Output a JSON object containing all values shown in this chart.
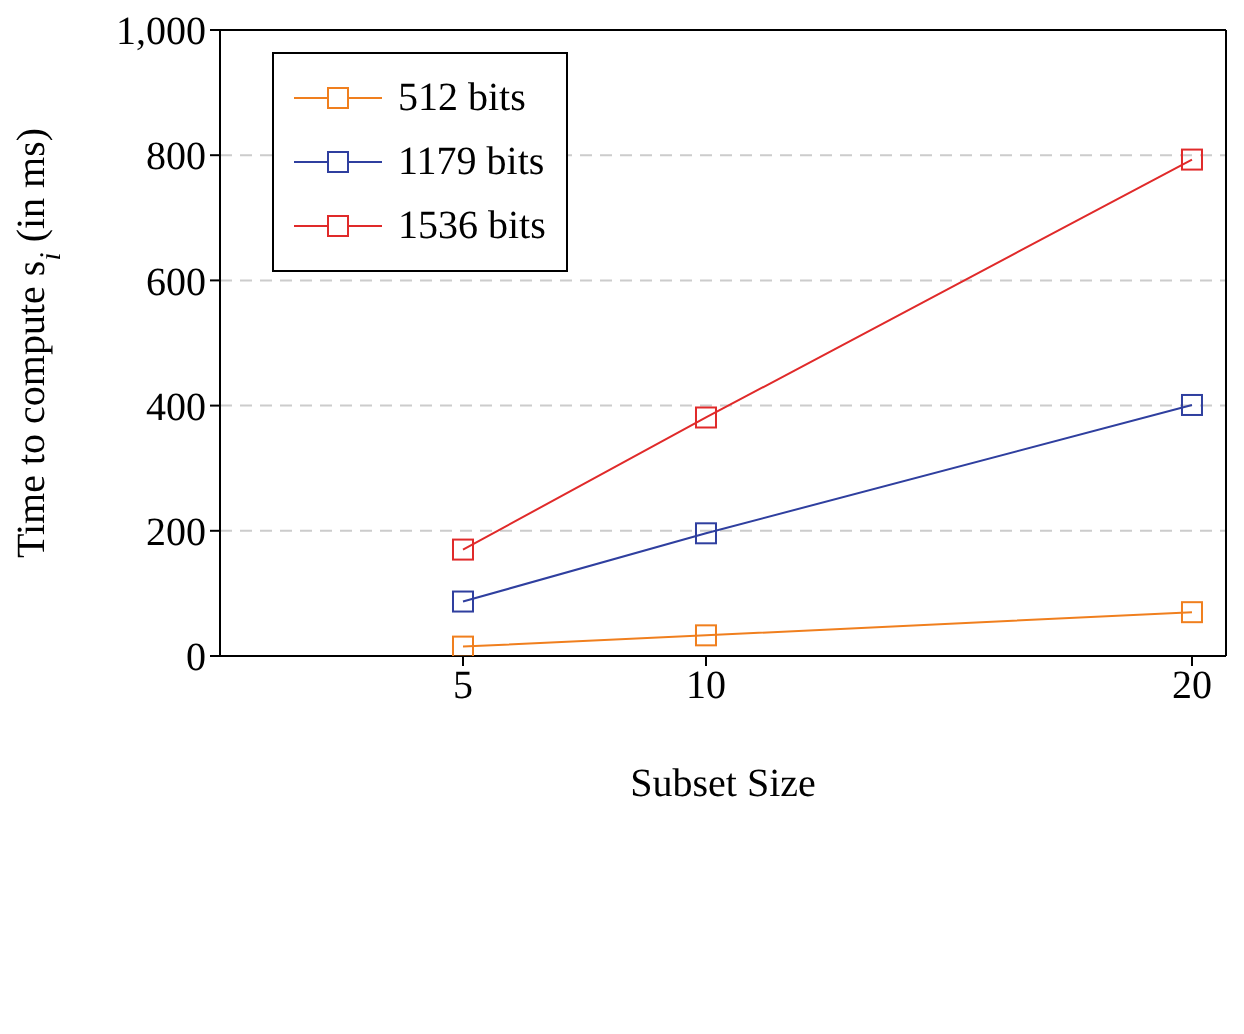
{
  "chart_data": {
    "type": "line",
    "xlabel": "Subset Size",
    "ylabel": "Time to compute s$_{i}$ (in ms)",
    "x": [
      5,
      10,
      20
    ],
    "series": [
      {
        "name": "512 bits",
        "color": "#f07f1e",
        "values": [
          15,
          33,
          70
        ]
      },
      {
        "name": "1179 bits",
        "color": "#2f3f9f",
        "values": [
          87,
          196,
          401
        ]
      },
      {
        "name": "1536 bits",
        "color": "#e02a2a",
        "values": [
          170,
          381,
          793
        ]
      }
    ],
    "xlim": [
      0,
      20.7
    ],
    "xticks": [
      5,
      10,
      20
    ],
    "ylim": [
      0,
      1000
    ],
    "yticks": [
      0,
      200,
      400,
      600,
      800,
      {
        "value": 1000,
        "label": "1,000"
      }
    ],
    "grid": "y",
    "legend": "top left",
    "marker": "square",
    "line_style": "solid"
  }
}
